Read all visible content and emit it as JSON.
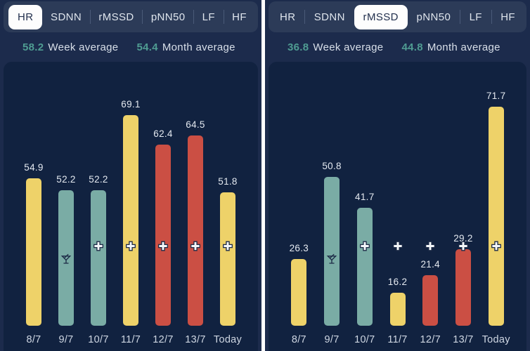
{
  "colors": {
    "page_bg": "#1C2B4C",
    "panel_bg": "#112240",
    "tabbar_bg": "#2C3B58",
    "tab_text": "#DFE5ED",
    "tab_selected_bg": "#FDFDFD",
    "tab_selected_text": "#22304E",
    "accent_teal": "#4F9C92",
    "value_label_text": "#E4E9F0",
    "axis_label_text": "#CED6E2",
    "bar_yellow": "#EED269",
    "bar_teal": "#7AACA5",
    "bar_red": "#CB4F44",
    "icon_outline": "#1C2A46",
    "divider_white": "#FFFFFF"
  },
  "panels": [
    {
      "tabs": [
        {
          "label": "HR",
          "selected": true
        },
        {
          "label": "SDNN",
          "selected": false
        },
        {
          "label": "rMSSD",
          "selected": false
        },
        {
          "label": "pNN50",
          "selected": false
        },
        {
          "label": "LF",
          "selected": false
        },
        {
          "label": "HF",
          "selected": false
        }
      ],
      "week_average": {
        "value": "58.2",
        "label": "Week average"
      },
      "month_average": {
        "value": "54.4",
        "label": "Month average"
      }
    },
    {
      "tabs": [
        {
          "label": "HR",
          "selected": false
        },
        {
          "label": "SDNN",
          "selected": false
        },
        {
          "label": "rMSSD",
          "selected": true
        },
        {
          "label": "pNN50",
          "selected": false
        },
        {
          "label": "LF",
          "selected": false
        },
        {
          "label": "HF",
          "selected": false
        }
      ],
      "week_average": {
        "value": "36.8",
        "label": "Week average"
      },
      "month_average": {
        "value": "44.8",
        "label": "Month average"
      }
    }
  ],
  "chart_data": [
    {
      "type": "bar",
      "title": "HR daily values",
      "categories": [
        "8/7",
        "9/7",
        "10/7",
        "11/7",
        "12/7",
        "13/7",
        "Today"
      ],
      "values": [
        54.9,
        52.2,
        52.2,
        69.1,
        62.4,
        64.5,
        51.8
      ],
      "bar_colors": [
        "yellow",
        "teal",
        "teal",
        "yellow",
        "red",
        "red",
        "yellow"
      ],
      "icons": [
        null,
        "cocktail-icon",
        "plus-icon",
        "plus-icon",
        "plus-icon",
        "plus-icon",
        "plus-icon"
      ],
      "week_average": 58.2,
      "month_average": 54.4,
      "ylim": [
        22,
        80.8
      ],
      "grid": false,
      "legend": false
    },
    {
      "type": "bar",
      "title": "rMSSD daily values",
      "categories": [
        "8/7",
        "9/7",
        "10/7",
        "11/7",
        "12/7",
        "13/7",
        "Today"
      ],
      "values": [
        26.3,
        50.8,
        41.7,
        16.2,
        21.4,
        29.2,
        71.7
      ],
      "bar_colors": [
        "yellow",
        "teal",
        "teal",
        "yellow",
        "red",
        "red",
        "yellow"
      ],
      "icons": [
        null,
        "cocktail-icon",
        "plus-icon",
        "plus-icon",
        "plus-icon",
        "plus-icon",
        "plus-icon"
      ],
      "week_average": 36.8,
      "month_average": 44.8,
      "ylim": [
        6.4,
        85
      ],
      "grid": false,
      "legend": false
    }
  ]
}
